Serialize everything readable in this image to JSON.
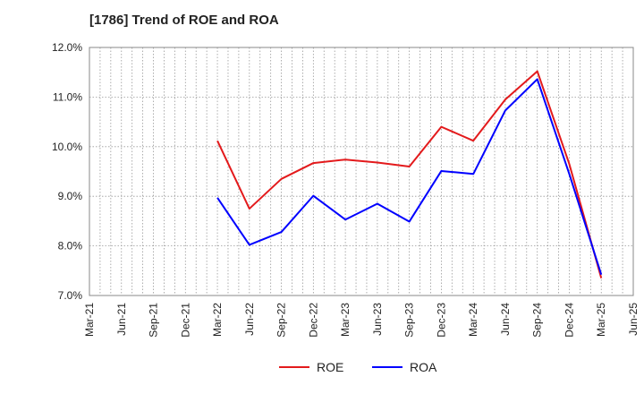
{
  "chart_data": {
    "type": "line",
    "title": "[1786]  Trend of ROE and ROA",
    "xlabel": "",
    "ylabel": "",
    "ylim": [
      7.0,
      12.0
    ],
    "yticks": [
      "7.0%",
      "8.0%",
      "9.0%",
      "10.0%",
      "11.0%",
      "12.0%"
    ],
    "ytick_values": [
      7,
      8,
      9,
      10,
      11,
      12
    ],
    "x_tick_labels": [
      "Mar-21",
      "Jun-21",
      "Sep-21",
      "Dec-21",
      "Mar-22",
      "Jun-22",
      "Sep-22",
      "Dec-22",
      "Mar-23",
      "Jun-23",
      "Sep-23",
      "Dec-23",
      "Mar-24",
      "Jun-24",
      "Sep-24",
      "Dec-24",
      "Mar-25",
      "Jun-25"
    ],
    "grid": true,
    "legend_position": "bottom-center",
    "series": [
      {
        "name": "ROE",
        "color": "#e31a1c",
        "x": [
          "Mar-22",
          "Jun-22",
          "Sep-22",
          "Dec-22",
          "Mar-23",
          "Jun-23",
          "Sep-23",
          "Dec-23",
          "Mar-24",
          "Jun-24",
          "Sep-24",
          "Dec-24",
          "Mar-25"
        ],
        "values": [
          10.12,
          8.75,
          9.35,
          9.67,
          9.74,
          9.68,
          9.6,
          10.4,
          10.12,
          10.95,
          11.52,
          9.65,
          7.35
        ]
      },
      {
        "name": "ROA",
        "color": "#0000ff",
        "x": [
          "Mar-22",
          "Jun-22",
          "Sep-22",
          "Dec-22",
          "Mar-23",
          "Jun-23",
          "Sep-23",
          "Dec-23",
          "Mar-24",
          "Jun-24",
          "Sep-24",
          "Dec-24",
          "Mar-25"
        ],
        "values": [
          8.97,
          8.02,
          8.28,
          9.01,
          8.53,
          8.85,
          8.49,
          9.51,
          9.45,
          10.73,
          11.36,
          9.45,
          7.42
        ]
      }
    ]
  }
}
